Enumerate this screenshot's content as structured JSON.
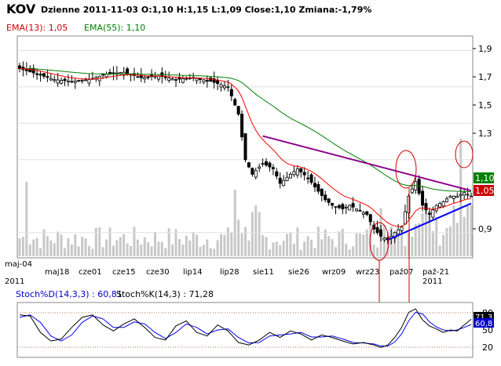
{
  "header": {
    "ticker": "KOV",
    "info": "Dzienne 2011-11-03 O:1,10 H:1,15 L:1,09 Close:1,10 Zmiana:-1,79%"
  },
  "legend": {
    "ema13": "EMA(13): 1,05",
    "ema55": "EMA(55): 1,10"
  },
  "stoch_legend": {
    "d": "Stoch%D(14,3,3) : 60,81",
    "k": "Stoch%K(14,3) : 71,28"
  },
  "colors": {
    "up": "#ffffff",
    "down": "#000000",
    "ema13": "#ff0000",
    "ema55": "#008000",
    "volume": "#c8c8c8",
    "trend_top": "#8b008b",
    "trend_bottom": "#0000ff",
    "stoch_d": "#0000ff",
    "stoch_k": "#000000",
    "badge_last": "#008000",
    "badge_ema13": "#cc0000"
  },
  "price_axis": {
    "ticks": [
      "1,9",
      "1,7",
      "1,5",
      "1,3",
      "0,9"
    ],
    "badge_last": "1,10",
    "badge_ema13": "1,05"
  },
  "stoch_axis": {
    "ticks": [
      "80",
      "50",
      "20"
    ],
    "badge_top": "71,3",
    "badge_bottom": "60,8"
  },
  "date_axis": {
    "labels": [
      "maj-04",
      "maj18",
      "cze01",
      "cze15",
      "cze30",
      "lip14",
      "lip28",
      "sie11",
      "sie26",
      "wrz09",
      "wrz23",
      "paź07",
      "paź-21"
    ],
    "year_labels": [
      "2011",
      "2011"
    ]
  },
  "chart_data": {
    "type": "candlestick",
    "title": "KOV Dzienne",
    "ylim": [
      0.77,
      1.97
    ],
    "price_anchors": [
      [
        0,
        1.8
      ],
      [
        5,
        1.77
      ],
      [
        10,
        1.74
      ],
      [
        15,
        1.73
      ],
      [
        20,
        1.74
      ],
      [
        25,
        1.77
      ],
      [
        30,
        1.78
      ],
      [
        35,
        1.75
      ],
      [
        40,
        1.76
      ],
      [
        45,
        1.74
      ],
      [
        50,
        1.75
      ],
      [
        55,
        1.73
      ],
      [
        60,
        1.7
      ],
      [
        63,
        1.55
      ],
      [
        65,
        1.3
      ],
      [
        67,
        1.22
      ],
      [
        70,
        1.28
      ],
      [
        73,
        1.25
      ],
      [
        75,
        1.17
      ],
      [
        78,
        1.22
      ],
      [
        80,
        1.25
      ],
      [
        83,
        1.2
      ],
      [
        85,
        1.15
      ],
      [
        88,
        1.08
      ],
      [
        90,
        1.05
      ],
      [
        93,
        1.03
      ],
      [
        95,
        1.05
      ],
      [
        98,
        1.02
      ],
      [
        100,
        1.0
      ],
      [
        102,
        0.92
      ],
      [
        104,
        0.88
      ],
      [
        106,
        0.86
      ],
      [
        108,
        0.9
      ],
      [
        110,
        0.93
      ],
      [
        112,
        1.1
      ],
      [
        114,
        1.18
      ],
      [
        116,
        1.05
      ],
      [
        118,
        1.0
      ],
      [
        120,
        1.05
      ],
      [
        122,
        1.07
      ],
      [
        124,
        1.1
      ],
      [
        126,
        1.1
      ],
      [
        128,
        1.12
      ],
      [
        130,
        1.1
      ]
    ],
    "stoch_k_anchors": [
      [
        0,
        80
      ],
      [
        3,
        78
      ],
      [
        6,
        45
      ],
      [
        9,
        28
      ],
      [
        12,
        32
      ],
      [
        15,
        55
      ],
      [
        18,
        75
      ],
      [
        21,
        80
      ],
      [
        24,
        60
      ],
      [
        27,
        48
      ],
      [
        30,
        62
      ],
      [
        33,
        72
      ],
      [
        36,
        55
      ],
      [
        39,
        35
      ],
      [
        42,
        30
      ],
      [
        45,
        58
      ],
      [
        48,
        68
      ],
      [
        51,
        45
      ],
      [
        54,
        38
      ],
      [
        57,
        60
      ],
      [
        60,
        48
      ],
      [
        63,
        25
      ],
      [
        66,
        20
      ],
      [
        69,
        30
      ],
      [
        72,
        45
      ],
      [
        75,
        35
      ],
      [
        78,
        48
      ],
      [
        81,
        42
      ],
      [
        84,
        30
      ],
      [
        87,
        40
      ],
      [
        90,
        35
      ],
      [
        93,
        28
      ],
      [
        96,
        22
      ],
      [
        99,
        25
      ],
      [
        102,
        20
      ],
      [
        104,
        15
      ],
      [
        106,
        20
      ],
      [
        108,
        35
      ],
      [
        110,
        55
      ],
      [
        112,
        85
      ],
      [
        114,
        92
      ],
      [
        116,
        70
      ],
      [
        118,
        58
      ],
      [
        120,
        52
      ],
      [
        122,
        45
      ],
      [
        124,
        50
      ],
      [
        126,
        48
      ],
      [
        128,
        60
      ],
      [
        130,
        71.28
      ]
    ],
    "stoch_d_anchors": [
      [
        0,
        75
      ],
      [
        3,
        80
      ],
      [
        6,
        65
      ],
      [
        9,
        38
      ],
      [
        12,
        28
      ],
      [
        15,
        40
      ],
      [
        18,
        65
      ],
      [
        21,
        78
      ],
      [
        24,
        72
      ],
      [
        27,
        55
      ],
      [
        30,
        55
      ],
      [
        33,
        66
      ],
      [
        36,
        62
      ],
      [
        39,
        45
      ],
      [
        42,
        33
      ],
      [
        45,
        45
      ],
      [
        48,
        62
      ],
      [
        51,
        55
      ],
      [
        54,
        42
      ],
      [
        57,
        50
      ],
      [
        60,
        52
      ],
      [
        63,
        35
      ],
      [
        66,
        24
      ],
      [
        69,
        25
      ],
      [
        72,
        38
      ],
      [
        75,
        40
      ],
      [
        78,
        42
      ],
      [
        81,
        45
      ],
      [
        84,
        36
      ],
      [
        87,
        36
      ],
      [
        90,
        38
      ],
      [
        93,
        32
      ],
      [
        96,
        25
      ],
      [
        99,
        24
      ],
      [
        102,
        22
      ],
      [
        104,
        18
      ],
      [
        106,
        18
      ],
      [
        108,
        26
      ],
      [
        110,
        42
      ],
      [
        112,
        68
      ],
      [
        114,
        85
      ],
      [
        116,
        82
      ],
      [
        118,
        66
      ],
      [
        120,
        56
      ],
      [
        122,
        50
      ],
      [
        124,
        48
      ],
      [
        126,
        50
      ],
      [
        128,
        55
      ],
      [
        130,
        60.81
      ]
    ],
    "trendlines": {
      "resistance": [
        [
          70,
          1.43
        ],
        [
          130,
          1.13
        ]
      ],
      "support": [
        [
          106,
          0.86
        ],
        [
          130,
          1.06
        ]
      ]
    },
    "stoch_levels": [
      80,
      20
    ]
  }
}
